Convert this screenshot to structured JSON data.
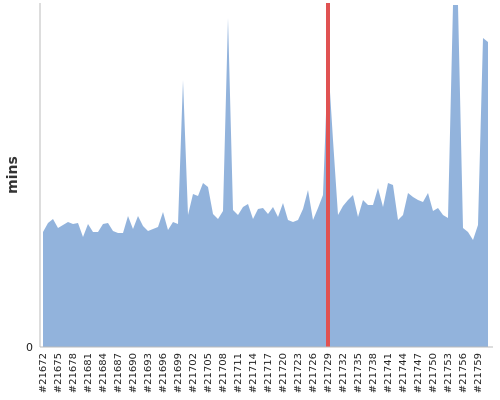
{
  "chart_data": {
    "type": "area",
    "y_label": "mins",
    "categories": [
      "#21672",
      null,
      null,
      "#21675",
      null,
      null,
      "#21678",
      null,
      null,
      "#21681",
      null,
      null,
      "#21684",
      null,
      null,
      "#21687",
      null,
      null,
      "#21690",
      null,
      null,
      "#21693",
      null,
      null,
      "#21696",
      null,
      null,
      "#21699",
      null,
      null,
      "#21702",
      null,
      null,
      "#21705",
      null,
      null,
      "#21708",
      null,
      null,
      "#21711",
      null,
      null,
      "#21714",
      null,
      null,
      "#21717",
      null,
      null,
      "#21720",
      null,
      null,
      "#21723",
      null,
      null,
      "#21726",
      null,
      null,
      "#21729",
      null,
      null,
      "#21732",
      null,
      null,
      "#21735",
      null,
      null,
      "#21738",
      null,
      null,
      "#21741",
      null,
      null,
      "#21744",
      null,
      null,
      "#21747",
      null,
      null,
      "#21750",
      null,
      null,
      "#21753",
      null,
      null,
      "#21756",
      null,
      null,
      "#21759",
      null,
      null
    ],
    "values": [
      115,
      124,
      128,
      119,
      122,
      125,
      123,
      124,
      110,
      123,
      115,
      115,
      123,
      124,
      116,
      114,
      114,
      131,
      118,
      131,
      121,
      116,
      118,
      120,
      135,
      117,
      125,
      123,
      267,
      132,
      153,
      151,
      164,
      160,
      133,
      128,
      136,
      329,
      137,
      132,
      140,
      143,
      128,
      138,
      139,
      133,
      140,
      130,
      144,
      127,
      125,
      127,
      138,
      157,
      127,
      139,
      152,
      287,
      207,
      132,
      141,
      147,
      152,
      130,
      147,
      142,
      142,
      159,
      140,
      164,
      162,
      127,
      132,
      154,
      150,
      147,
      145,
      154,
      136,
      139,
      132,
      129,
      342,
      342,
      119,
      115,
      107,
      122,
      309,
      305
    ],
    "color": "#92b3dc",
    "highlight_index": 57,
    "highlight_color": "#e05252",
    "ylim": [
      0,
      344
    ],
    "yticks": [
      0
    ]
  }
}
